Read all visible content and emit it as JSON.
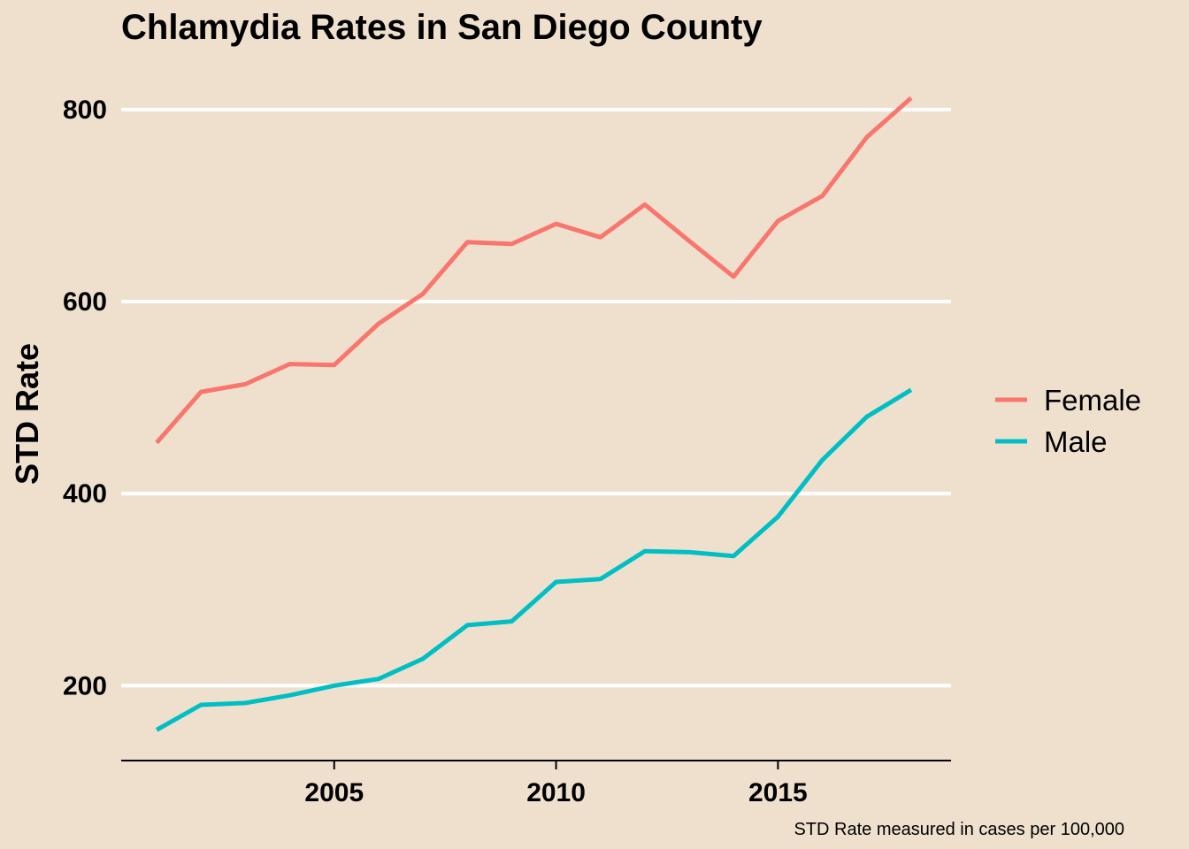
{
  "chart_data": {
    "type": "line",
    "title": "Chlamydia Rates in San Diego County",
    "xlabel": "",
    "ylabel": "STD Rate",
    "caption": "STD Rate measured in cases per 100,000",
    "xlim": [
      2000.2,
      2018.9
    ],
    "ylim": [
      122,
      845
    ],
    "x_ticks": [
      2005,
      2010,
      2015
    ],
    "y_ticks": [
      200,
      400,
      600,
      800
    ],
    "grid": "horizontal major lines",
    "legend_position": "right",
    "x": [
      2001,
      2002,
      2003,
      2004,
      2005,
      2006,
      2007,
      2008,
      2009,
      2010,
      2011,
      2012,
      2013,
      2014,
      2015,
      2016,
      2017,
      2018
    ],
    "series": [
      {
        "name": "Female",
        "color": "#F8766D",
        "values": [
          453,
          506,
          514,
          535,
          534,
          577,
          608,
          662,
          660,
          681,
          667,
          701,
          663,
          626,
          684,
          710,
          771,
          812
        ]
      },
      {
        "name": "Male",
        "color": "#00BFC4",
        "values": [
          154,
          180,
          182,
          190,
          200,
          207,
          228,
          263,
          267,
          308,
          311,
          340,
          339,
          335,
          376,
          435,
          480,
          508
        ]
      }
    ]
  }
}
